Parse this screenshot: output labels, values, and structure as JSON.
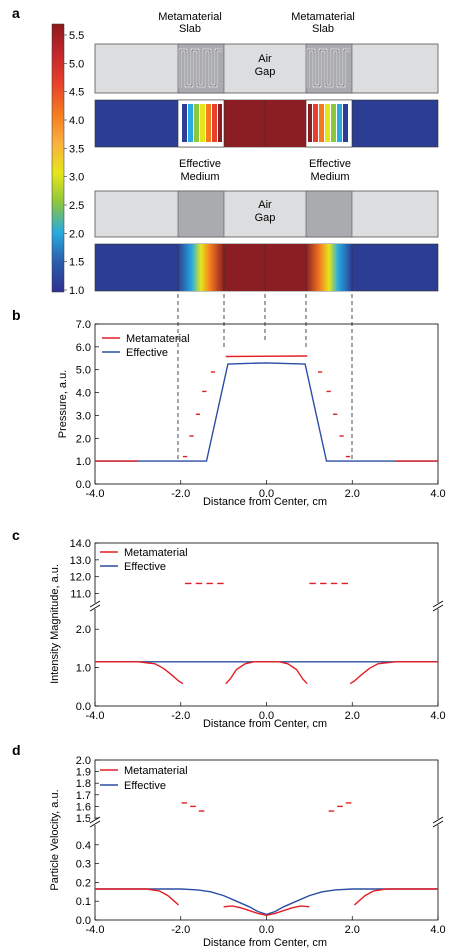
{
  "panel_labels": {
    "a": "a",
    "b": "b",
    "c": "c",
    "d": "d"
  },
  "panel_a": {
    "colorbar_ticks": [
      "5.5",
      "5.0",
      "4.5",
      "4.0",
      "3.5",
      "3.0",
      "2.5",
      "2.0",
      "1.5",
      "1.0"
    ],
    "colorbar_colors": [
      "#8c1a1a",
      "#c2272d",
      "#e8412b",
      "#f47b20",
      "#fbb040",
      "#e5e619",
      "#8dc63f",
      "#27aae1",
      "#2a5caa",
      "#2e3192"
    ],
    "meta_left_label": [
      "Metamaterial",
      "Slab"
    ],
    "meta_right_label": [
      "Metamaterial",
      "Slab"
    ],
    "air_gap_label": [
      "Air",
      "Gap"
    ],
    "eff_left_label": [
      "Effective",
      "Medium"
    ],
    "eff_right_label": [
      "Effective",
      "Medium"
    ],
    "field_colors": {
      "background": "#2c3e94",
      "gap": "#8b1e22",
      "slab_gray": "#a9abae",
      "block_light": "#dcdddf"
    }
  },
  "chart_data": [
    {
      "type": "line",
      "panel": "b",
      "xlabel": "Distance from Center, cm",
      "ylabel": "Pressure, a.u.",
      "xlim": [
        -4.0,
        4.0
      ],
      "ylim": [
        0.0,
        7.0
      ],
      "xticks": [
        "-4.0",
        "-2.0",
        "0.0",
        "2.0",
        "4.0"
      ],
      "yticks": [
        "0.0",
        "1.0",
        "2.0",
        "3.0",
        "4.0",
        "5.0",
        "6.0",
        "7.0"
      ],
      "legend": [
        "Metamaterial",
        "Effective"
      ],
      "series": [
        {
          "name": "Effective",
          "color": "#2b4ea2",
          "x": [
            -4.0,
            -1.4,
            -0.9,
            0.0,
            0.9,
            1.4,
            4.0
          ],
          "y": [
            1.0,
            1.0,
            5.25,
            5.3,
            5.25,
            1.0,
            1.0
          ]
        },
        {
          "name": "Metamaterial",
          "color": "#e31e24",
          "segments": [
            {
              "x": [
                -4.0,
                -3.0
              ],
              "y": [
                1.0,
                1.0
              ]
            },
            {
              "x": [
                -0.95,
                0.95
              ],
              "y": [
                5.58,
                5.6
              ]
            },
            {
              "x": [
                3.0,
                4.0
              ],
              "y": [
                1.0,
                1.0
              ]
            }
          ],
          "dashes": [
            {
              "x": [
                -1.95,
                -1.85
              ],
              "y": 1.2
            },
            {
              "x": [
                -1.8,
                -1.7
              ],
              "y": 2.1
            },
            {
              "x": [
                -1.65,
                -1.55
              ],
              "y": 3.05
            },
            {
              "x": [
                -1.5,
                -1.4
              ],
              "y": 4.05
            },
            {
              "x": [
                -1.3,
                -1.2
              ],
              "y": 4.9
            },
            {
              "x": [
                1.2,
                1.3
              ],
              "y": 4.9
            },
            {
              "x": [
                1.4,
                1.5
              ],
              "y": 4.05
            },
            {
              "x": [
                1.55,
                1.65
              ],
              "y": 3.05
            },
            {
              "x": [
                1.7,
                1.8
              ],
              "y": 2.1
            },
            {
              "x": [
                1.85,
                1.95
              ],
              "y": 1.2
            }
          ]
        }
      ]
    },
    {
      "type": "line",
      "panel": "c",
      "xlabel": "Distance from Center, cm",
      "ylabel": "Intensity Magnitude, a.u.",
      "xlim": [
        -4.0,
        4.0
      ],
      "ylim_lower": [
        0.0,
        2.5
      ],
      "ylim_upper": [
        10.5,
        14.0
      ],
      "xticks": [
        "-4.0",
        "-2.0",
        "0.0",
        "2.0",
        "4.0"
      ],
      "yticks_lower": [
        "0.0",
        "1.0",
        "2.0"
      ],
      "yticks_upper": [
        "11.0",
        "12.0",
        "13.0",
        "14.0"
      ],
      "legend": [
        "Metamaterial",
        "Effective"
      ],
      "series": [
        {
          "name": "Effective",
          "color": "#2b4ea2",
          "x": [
            -4.0,
            4.0
          ],
          "y": [
            1.15,
            1.15
          ]
        },
        {
          "name": "Metamaterial",
          "color": "#e31e24",
          "segments": [
            {
              "x": [
                -4.0,
                -3.0,
                -2.6,
                -2.4,
                -2.2,
                -2.05,
                -1.95
              ],
              "y": [
                1.15,
                1.15,
                1.1,
                0.98,
                0.8,
                0.65,
                0.58
              ]
            },
            {
              "x": [
                -0.95,
                -0.85,
                -0.7,
                -0.5,
                -0.3,
                0.0,
                0.3,
                0.5,
                0.7,
                0.85,
                0.95
              ],
              "y": [
                0.58,
                0.7,
                0.95,
                1.1,
                1.15,
                1.15,
                1.15,
                1.1,
                0.95,
                0.7,
                0.58
              ]
            },
            {
              "x": [
                1.95,
                2.05,
                2.2,
                2.4,
                2.6,
                3.0,
                4.0
              ],
              "y": [
                0.58,
                0.65,
                0.8,
                0.98,
                1.1,
                1.15,
                1.15
              ]
            }
          ],
          "dashes": [
            {
              "x": [
                -1.9,
                -1.75
              ],
              "y": 11.6
            },
            {
              "x": [
                -1.65,
                -1.5
              ],
              "y": 11.6
            },
            {
              "x": [
                -1.4,
                -1.25
              ],
              "y": 11.6
            },
            {
              "x": [
                -1.15,
                -1.0
              ],
              "y": 11.6
            },
            {
              "x": [
                1.0,
                1.15
              ],
              "y": 11.6
            },
            {
              "x": [
                1.25,
                1.4
              ],
              "y": 11.6
            },
            {
              "x": [
                1.5,
                1.65
              ],
              "y": 11.6
            },
            {
              "x": [
                1.75,
                1.9
              ],
              "y": 11.6
            }
          ]
        }
      ]
    },
    {
      "type": "line",
      "panel": "d",
      "xlabel": "Distance from Center, cm",
      "ylabel": "Particle Velocity, a.u.",
      "xlim": [
        -4.0,
        4.0
      ],
      "ylim_lower": [
        0.0,
        0.5
      ],
      "ylim_upper": [
        1.5,
        2.0
      ],
      "xticks": [
        "-4.0",
        "-2.0",
        "0.0",
        "2.0",
        "4.0"
      ],
      "yticks_lower": [
        "0.0",
        "0.1",
        "0.2",
        "0.3",
        "0.4"
      ],
      "yticks_upper": [
        "1.5",
        "1.6",
        "1.7",
        "1.8",
        "1.9",
        "2.0"
      ],
      "legend": [
        "Metamaterial",
        "Effective"
      ],
      "series": [
        {
          "name": "Effective",
          "color": "#2b4ea2",
          "x": [
            -4.0,
            -2.0,
            -1.6,
            -1.3,
            -1.0,
            -0.7,
            -0.4,
            -0.2,
            0.0,
            0.2,
            0.4,
            0.7,
            1.0,
            1.3,
            1.6,
            2.0,
            4.0
          ],
          "y": [
            0.165,
            0.165,
            0.16,
            0.15,
            0.13,
            0.1,
            0.07,
            0.045,
            0.03,
            0.045,
            0.07,
            0.1,
            0.13,
            0.15,
            0.16,
            0.165,
            0.165
          ]
        },
        {
          "name": "Metamaterial",
          "color": "#e31e24",
          "segments": [
            {
              "x": [
                -4.0,
                -2.8,
                -2.5,
                -2.3,
                -2.15,
                -2.05
              ],
              "y": [
                0.165,
                0.165,
                0.155,
                0.13,
                0.1,
                0.08
              ]
            },
            {
              "x": [
                -1.0,
                -0.8,
                -0.6,
                -0.4,
                -0.2,
                0.0,
                0.2,
                0.4,
                0.6,
                0.8,
                1.0
              ],
              "y": [
                0.07,
                0.075,
                0.065,
                0.05,
                0.035,
                0.025,
                0.035,
                0.05,
                0.065,
                0.075,
                0.07
              ]
            },
            {
              "x": [
                2.05,
                2.15,
                2.3,
                2.5,
                2.8,
                4.0
              ],
              "y": [
                0.08,
                0.1,
                0.13,
                0.155,
                0.165,
                0.165
              ]
            }
          ],
          "dashes": [
            {
              "x": [
                -1.98,
                -1.85
              ],
              "y": 1.63
            },
            {
              "x": [
                -1.78,
                -1.65
              ],
              "y": 1.6
            },
            {
              "x": [
                -1.58,
                -1.45
              ],
              "y": 1.56
            },
            {
              "x": [
                1.45,
                1.58
              ],
              "y": 1.56
            },
            {
              "x": [
                1.65,
                1.78
              ],
              "y": 1.6
            },
            {
              "x": [
                1.85,
                1.98
              ],
              "y": 1.63
            }
          ]
        }
      ]
    }
  ]
}
